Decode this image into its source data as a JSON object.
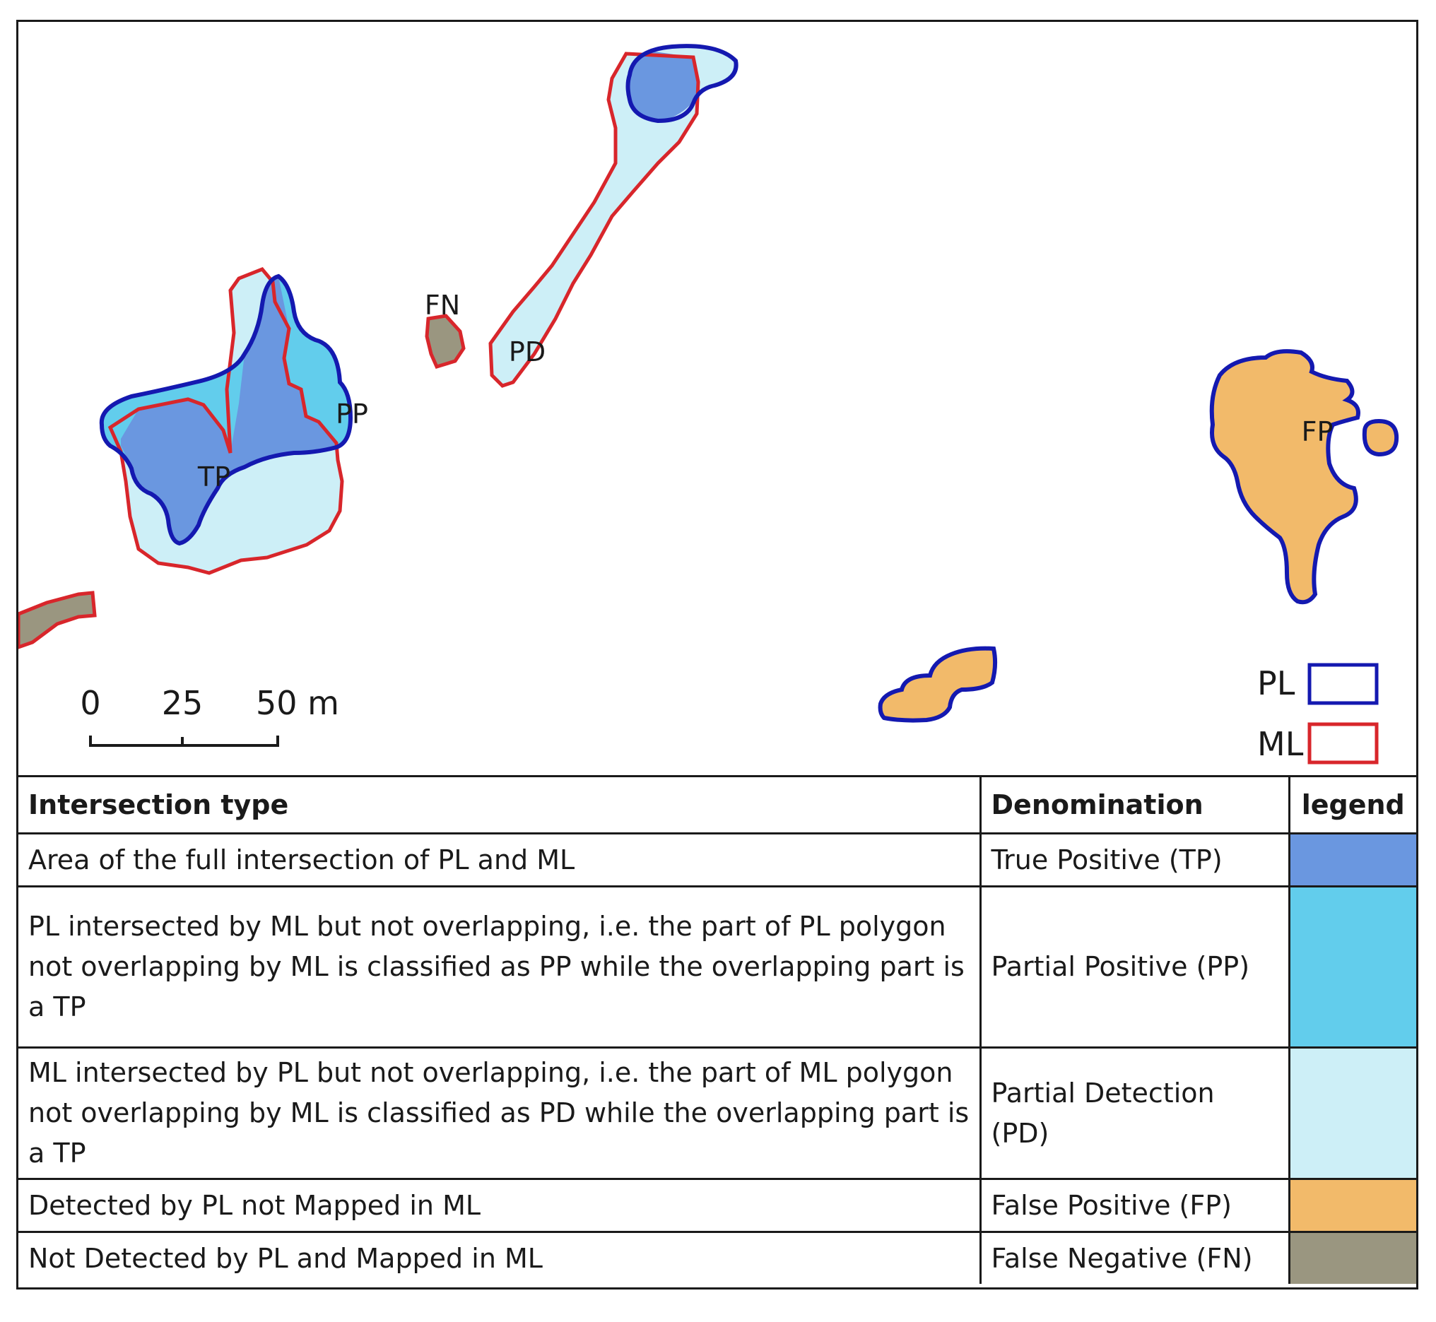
{
  "colors": {
    "tp": "#6a97e0",
    "pp": "#62cdec",
    "pd": "#cdeff7",
    "fp": "#f2ba6a",
    "fn": "#9a9680",
    "pl_stroke": "#1419b0",
    "ml_stroke": "#d8262b"
  },
  "map": {
    "labels": {
      "fn": "FN",
      "pd": "PD",
      "pp": "PP",
      "tp": "TP",
      "fp": "FP"
    },
    "scale_bar": {
      "tick_0": "0",
      "tick_25": "25",
      "tick_50": "50 m"
    },
    "key": {
      "pl": "PL",
      "ml": "ML"
    }
  },
  "table": {
    "headers": {
      "intersection_type": "Intersection type",
      "denomination": "Denomination",
      "legend": "legend"
    },
    "rows": [
      {
        "description": "Area of the full intersection of PL and ML",
        "denomination": "True Positive (TP)",
        "color": "#6a97e0"
      },
      {
        "description": "PL intersected by ML but not overlapping, i.e.  the part of  PL polygon not overlapping by  ML is classified  as PP while  the overlapping  part is a TP",
        "denomination": "Partial Positive (PP)",
        "color": "#62cdec"
      },
      {
        "description": "ML intersected by PL but not overlapping, i.e.  the part of  ML polygon not overlapping by  ML is classified  as PD while  the overlapping  part  is a TP",
        "denomination": "Partial Detection (PD)",
        "color": "#cdeff7"
      },
      {
        "description": "Detected by PL not Mapped in ML",
        "denomination": "False Positive (FP)",
        "color": "#f2ba6a"
      },
      {
        "description": "Not Detected by PL and Mapped in ML",
        "denomination": "False Negative (FN)",
        "color": "#9a9680"
      }
    ]
  }
}
